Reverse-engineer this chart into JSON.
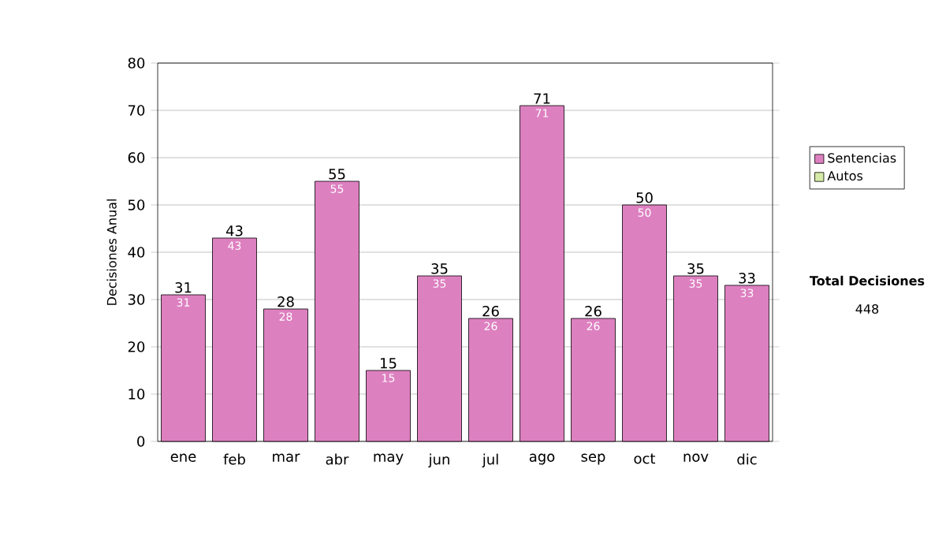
{
  "chart_data": {
    "type": "bar",
    "stacked": true,
    "ylabel": "Decisiones Anual",
    "categories": [
      "ene",
      "feb",
      "mar",
      "abr",
      "may",
      "jun",
      "jul",
      "ago",
      "sep",
      "oct",
      "nov",
      "dic"
    ],
    "series": [
      {
        "name": "Sentencias",
        "color": "#dd80c0",
        "values": [
          31,
          43,
          28,
          55,
          15,
          35,
          26,
          71,
          26,
          50,
          35,
          33
        ],
        "value_labels": [
          "31",
          "43",
          "28",
          "55",
          "15",
          "35",
          "26",
          "71",
          "26",
          "50",
          "35",
          "33"
        ]
      },
      {
        "name": "Autos",
        "color": "#d6eaa8",
        "values": [
          0,
          0,
          0,
          0,
          0,
          0,
          0,
          0,
          0,
          0,
          0,
          0
        ]
      }
    ],
    "totals": [
      "31",
      "43",
      "28",
      "55",
      "15",
      "35",
      "26",
      "71",
      "26",
      "50",
      "35",
      "33"
    ],
    "ylim": [
      0,
      80
    ],
    "yticks": [
      0,
      10,
      20,
      30,
      40,
      50,
      60,
      70,
      80
    ],
    "grid": "y",
    "legend": "right",
    "annotations": [
      "Total Decisiones",
      "448"
    ]
  }
}
